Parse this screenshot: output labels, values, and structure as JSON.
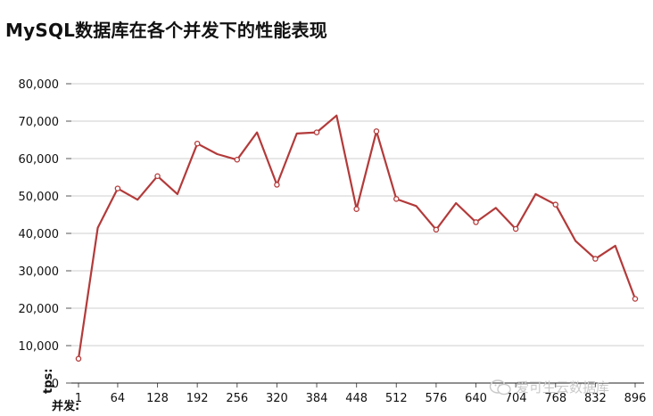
{
  "title": "MySQL数据库在各个并发下的性能表现",
  "watermark": "爱可生云数据库",
  "chart_data": {
    "type": "line",
    "title": "MySQL数据库在各个并发下的性能表现",
    "xlabel": "并发:",
    "ylabel": "tps:",
    "ylim": [
      0,
      80000
    ],
    "yticks": [
      "0",
      "10,000",
      "20,000",
      "30,000",
      "40,000",
      "50,000",
      "60,000",
      "70,000",
      "80,000"
    ],
    "xticks": [
      "1",
      "64",
      "128",
      "192",
      "256",
      "320",
      "384",
      "448",
      "512",
      "576",
      "640",
      "704",
      "768",
      "832",
      "896"
    ],
    "x": [
      1,
      32,
      64,
      96,
      128,
      160,
      192,
      224,
      256,
      288,
      320,
      352,
      384,
      416,
      448,
      480,
      512,
      544,
      576,
      608,
      640,
      672,
      704,
      736,
      768,
      800,
      832,
      864,
      896
    ],
    "series": [
      {
        "color": "#b33a3a",
        "values": [
          6500,
          41500,
          52000,
          49000,
          55300,
          50500,
          64000,
          61200,
          59700,
          67000,
          53000,
          66700,
          67000,
          71500,
          46500,
          67300,
          49200,
          47300,
          41000,
          48100,
          43000,
          46800,
          41200,
          50500,
          47700,
          38000,
          33200,
          36700,
          22500
        ]
      }
    ],
    "markers_at": [
      1,
      64,
      128,
      192,
      256,
      320,
      384,
      448,
      480,
      512,
      576,
      640,
      704,
      768,
      832,
      896
    ],
    "grid": true
  }
}
